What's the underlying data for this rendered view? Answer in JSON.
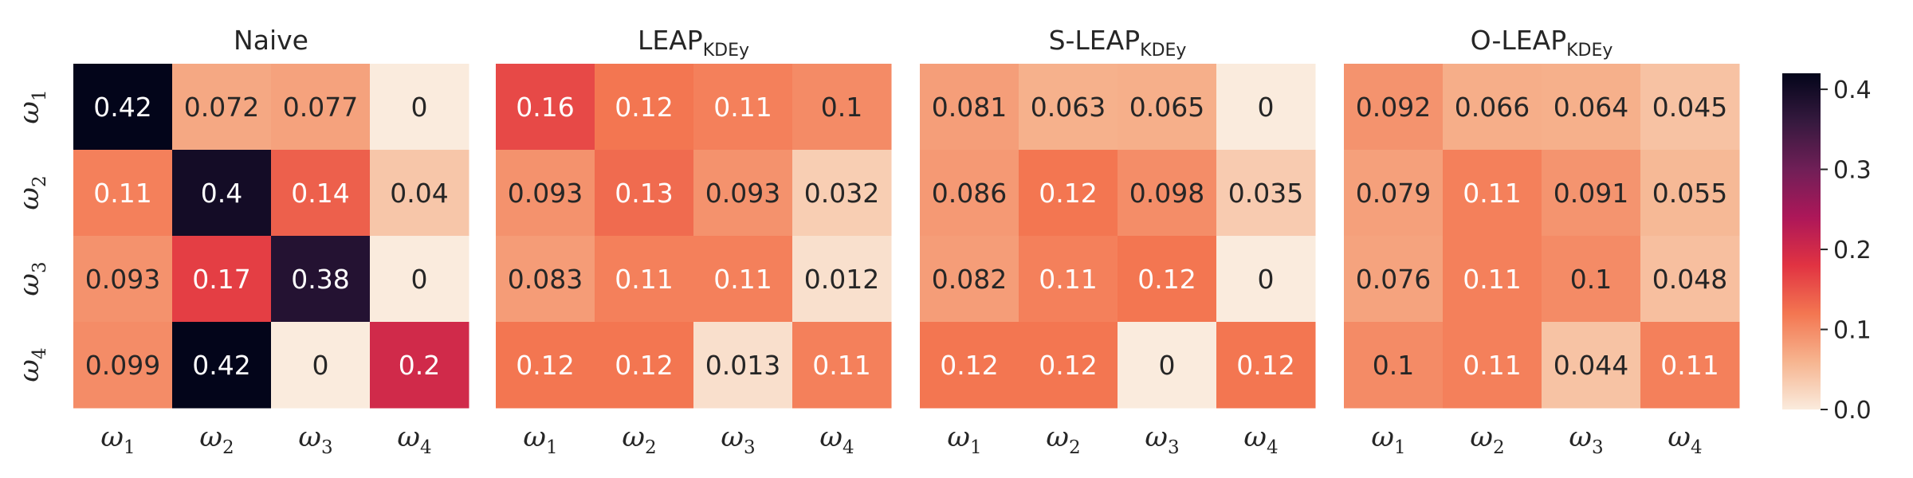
{
  "chart_data": {
    "type": "heatmap",
    "row_labels": [
      {
        "base": "ω",
        "sub": "1"
      },
      {
        "base": "ω",
        "sub": "2"
      },
      {
        "base": "ω",
        "sub": "3"
      },
      {
        "base": "ω",
        "sub": "4"
      }
    ],
    "col_labels": [
      {
        "base": "ω",
        "sub": "1"
      },
      {
        "base": "ω",
        "sub": "2"
      },
      {
        "base": "ω",
        "sub": "3"
      },
      {
        "base": "ω",
        "sub": "4"
      }
    ],
    "panels": [
      {
        "title": "Naive",
        "title_sub": "",
        "values": [
          [
            0.42,
            0.072,
            0.077,
            0
          ],
          [
            0.11,
            0.4,
            0.14,
            0.04
          ],
          [
            0.093,
            0.17,
            0.38,
            0
          ],
          [
            0.099,
            0.42,
            0,
            0.2
          ]
        ],
        "labels": [
          [
            "0.42",
            "0.072",
            "0.077",
            "0"
          ],
          [
            "0.11",
            "0.4",
            "0.14",
            "0.04"
          ],
          [
            "0.093",
            "0.17",
            "0.38",
            "0"
          ],
          [
            "0.099",
            "0.42",
            "0",
            "0.2"
          ]
        ]
      },
      {
        "title": "LEAP",
        "title_sub": "KDEy",
        "values": [
          [
            0.16,
            0.12,
            0.11,
            0.1
          ],
          [
            0.093,
            0.13,
            0.093,
            0.032
          ],
          [
            0.083,
            0.11,
            0.11,
            0.012
          ],
          [
            0.12,
            0.12,
            0.013,
            0.11
          ]
        ],
        "labels": [
          [
            "0.16",
            "0.12",
            "0.11",
            "0.1"
          ],
          [
            "0.093",
            "0.13",
            "0.093",
            "0.032"
          ],
          [
            "0.083",
            "0.11",
            "0.11",
            "0.012"
          ],
          [
            "0.12",
            "0.12",
            "0.013",
            "0.11"
          ]
        ]
      },
      {
        "title": "S-LEAP",
        "title_sub": "KDEy",
        "values": [
          [
            0.081,
            0.063,
            0.065,
            0
          ],
          [
            0.086,
            0.12,
            0.098,
            0.035
          ],
          [
            0.082,
            0.11,
            0.12,
            0
          ],
          [
            0.12,
            0.12,
            0,
            0.12
          ]
        ],
        "labels": [
          [
            "0.081",
            "0.063",
            "0.065",
            "0"
          ],
          [
            "0.086",
            "0.12",
            "0.098",
            "0.035"
          ],
          [
            "0.082",
            "0.11",
            "0.12",
            "0"
          ],
          [
            "0.12",
            "0.12",
            "0",
            "0.12"
          ]
        ]
      },
      {
        "title": "O-LEAP",
        "title_sub": "KDEy",
        "values": [
          [
            0.092,
            0.066,
            0.064,
            0.045
          ],
          [
            0.079,
            0.11,
            0.091,
            0.055
          ],
          [
            0.076,
            0.11,
            0.1,
            0.048
          ],
          [
            0.1,
            0.11,
            0.044,
            0.11
          ]
        ],
        "labels": [
          [
            "0.092",
            "0.066",
            "0.064",
            "0.045"
          ],
          [
            "0.079",
            "0.11",
            "0.091",
            "0.055"
          ],
          [
            "0.076",
            "0.11",
            "0.1",
            "0.048"
          ],
          [
            "0.1",
            "0.11",
            "0.044",
            "0.11"
          ]
        ]
      }
    ],
    "colorbar": {
      "min": 0,
      "max": 0.42,
      "ticks": [
        0.0,
        0.1,
        0.2,
        0.3,
        0.4
      ],
      "tick_labels": [
        "0.0",
        "0.1",
        "0.2",
        "0.3",
        "0.4"
      ],
      "colormap": "rocket_r",
      "stops": [
        "#faebdd",
        "#f6b48f",
        "#f37651",
        "#e13342",
        "#ad1759",
        "#701f57",
        "#35193e",
        "#03051a"
      ]
    }
  }
}
